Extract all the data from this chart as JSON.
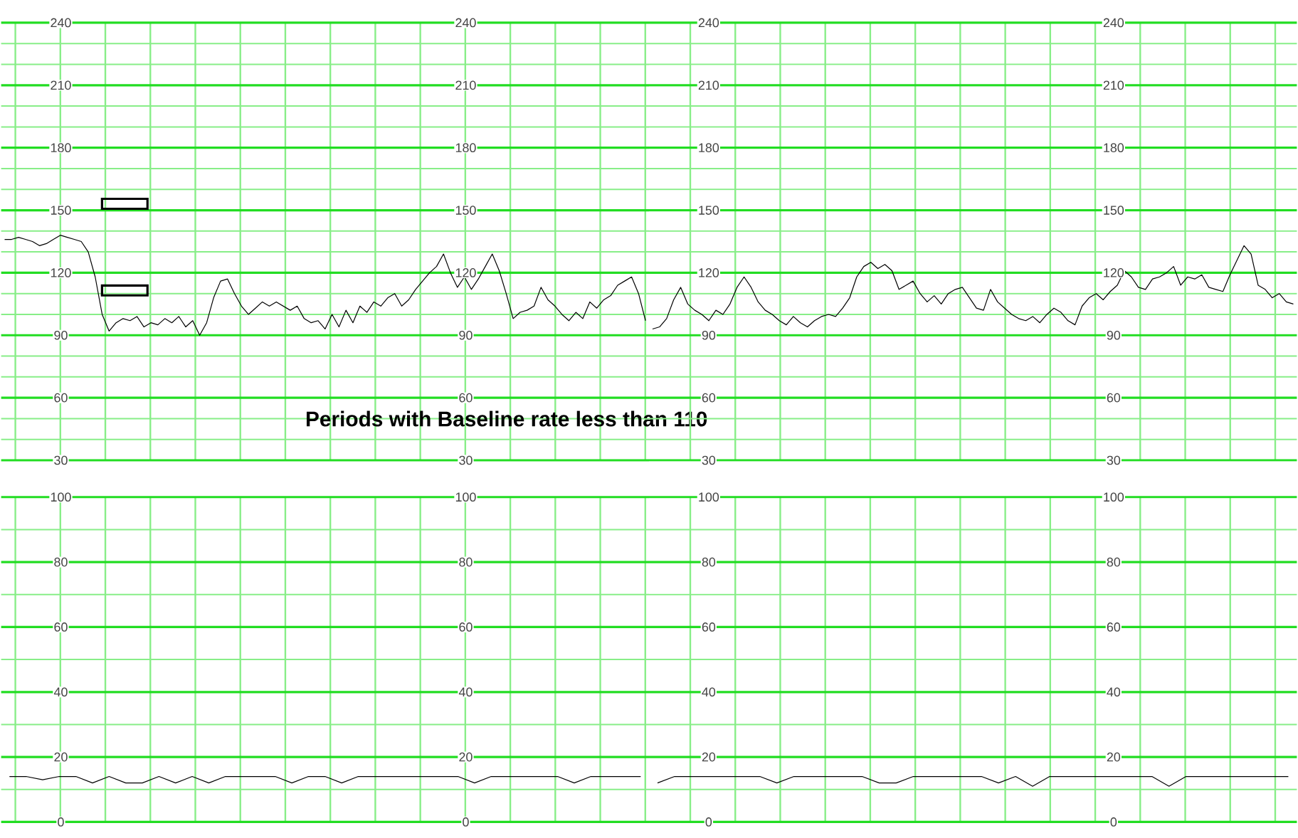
{
  "chart_data": [
    {
      "type": "line",
      "annotations": [
        "Periods with Baseline rate less than 110"
      ],
      "categories": [
        null,
        null,
        null,
        null,
        null,
        null,
        null,
        null,
        null,
        null,
        null,
        null,
        null,
        null,
        null,
        null,
        null,
        null,
        null,
        null,
        null,
        null,
        null,
        null,
        null,
        null,
        null,
        null,
        null,
        null,
        null,
        null,
        null,
        null,
        null,
        null,
        null,
        null,
        null,
        null,
        null,
        null,
        null,
        null,
        null,
        null,
        null,
        null,
        null,
        null,
        null,
        null,
        null,
        null,
        null,
        null,
        null,
        null,
        null,
        null,
        null,
        null,
        null,
        null,
        null,
        null,
        null,
        null,
        null,
        null,
        null,
        null,
        null,
        null,
        null,
        null,
        null,
        null,
        null,
        null,
        null,
        null,
        null,
        null,
        null,
        null,
        null,
        null,
        null,
        null,
        null,
        null,
        null
      ],
      "series": [
        {
          "color": "#000000",
          "values": [
            136,
            136,
            137,
            136,
            135,
            133,
            134,
            136,
            138,
            137,
            136,
            135,
            130,
            118,
            100,
            92,
            96,
            98,
            97,
            99,
            94,
            96,
            95,
            98,
            96,
            99,
            94,
            97,
            90,
            96,
            108,
            116,
            117,
            110,
            104,
            100,
            103,
            106,
            104,
            106,
            104,
            102,
            104,
            98,
            96,
            97,
            93,
            100,
            94,
            102,
            96,
            104,
            101,
            106,
            104,
            108,
            110,
            104,
            107,
            112,
            116,
            120,
            123,
            129,
            120,
            113,
            118,
            112,
            117,
            123,
            129,
            121,
            110,
            98,
            101,
            102,
            104,
            113,
            107,
            104,
            100,
            97,
            101,
            98,
            106,
            103,
            107,
            109,
            114,
            116,
            118,
            110,
            97
          ]
        }
      ],
      "ylim": [
        30,
        240
      ],
      "yticks": [
        30,
        {
          "value": 40,
          "label": null
        },
        {
          "value": 50,
          "label": null
        },
        60,
        {
          "value": 70,
          "label": null
        },
        {
          "value": 80,
          "label": null
        },
        90,
        {
          "value": 100,
          "label": null
        },
        {
          "value": 110,
          "label": null
        },
        120,
        {
          "value": 130,
          "label": null
        },
        {
          "value": 140,
          "label": null
        },
        150,
        {
          "value": 160,
          "label": null
        },
        {
          "value": 170,
          "label": null
        },
        180,
        {
          "value": 190,
          "label": null
        },
        {
          "value": 200,
          "label": null
        },
        210,
        {
          "value": 220,
          "label": null
        },
        {
          "value": 230,
          "label": null
        },
        240
      ],
      "y2lim": [
        30,
        240
      ],
      "y2ticks": [
        30,
        60,
        90,
        120,
        150,
        180,
        210,
        240
      ],
      "grid": true,
      "tick_labels": "y"
    },
    {
      "type": "line",
      "categories": [
        null,
        null,
        null,
        null,
        null,
        null,
        null,
        null,
        null,
        null,
        null,
        null,
        null,
        null,
        null,
        null,
        null,
        null,
        null,
        null,
        null,
        null,
        null,
        null,
        null,
        null,
        null,
        null,
        null,
        null,
        null,
        null,
        null,
        null,
        null,
        null,
        null,
        null,
        null,
        null,
        null,
        null,
        null,
        null,
        null,
        null,
        null,
        null,
        null,
        null,
        null,
        null,
        null,
        null,
        null,
        null,
        null,
        null,
        null,
        null,
        null,
        null,
        null,
        null,
        null,
        null,
        null,
        null,
        null,
        null,
        null,
        null,
        null,
        null,
        null,
        null,
        null,
        null,
        null,
        null,
        null,
        null,
        null,
        null,
        null,
        null,
        null,
        null,
        null,
        null,
        null,
        null
      ],
      "series": [
        {
          "color": "#000000",
          "values": [
            93,
            94,
            98,
            107,
            113,
            105,
            102,
            100,
            97,
            102,
            100,
            105,
            113,
            118,
            113,
            106,
            102,
            100,
            97,
            95,
            99,
            96,
            94,
            97,
            99,
            100,
            99,
            103,
            108,
            118,
            123,
            125,
            122,
            124,
            121,
            112,
            114,
            116,
            110,
            106,
            109,
            105,
            110,
            112,
            113,
            108,
            103,
            102,
            112,
            106,
            103,
            100,
            98,
            97,
            99,
            96,
            100,
            103,
            101,
            97,
            95,
            104,
            108,
            110,
            107,
            111,
            114,
            121,
            118,
            113,
            112,
            117,
            118,
            120,
            123,
            114,
            118,
            117,
            119,
            113,
            112,
            111,
            119,
            126,
            133,
            129,
            114,
            112,
            108,
            110,
            106,
            105
          ]
        }
      ],
      "ylim": [
        30,
        240
      ],
      "yticks": [
        30,
        {
          "value": 40,
          "label": null
        },
        {
          "value": 50,
          "label": null
        },
        60,
        {
          "value": 70,
          "label": null
        },
        {
          "value": 80,
          "label": null
        },
        90,
        {
          "value": 100,
          "label": null
        },
        {
          "value": 110,
          "label": null
        },
        120,
        {
          "value": 130,
          "label": null
        },
        {
          "value": 140,
          "label": null
        },
        150,
        {
          "value": 160,
          "label": null
        },
        {
          "value": 170,
          "label": null
        },
        180,
        {
          "value": 190,
          "label": null
        },
        {
          "value": 200,
          "label": null
        },
        210,
        {
          "value": 220,
          "label": null
        },
        {
          "value": 230,
          "label": null
        },
        240
      ],
      "y2lim": [
        30,
        240
      ],
      "y2ticks": [
        30,
        60,
        90,
        120,
        150,
        180,
        210,
        240
      ],
      "grid": true,
      "tick_labels": "y"
    },
    {
      "type": "line",
      "categories": [
        null,
        null,
        null,
        null,
        null,
        null,
        null,
        null,
        null,
        null,
        null,
        null,
        null,
        null,
        null,
        null,
        null,
        null,
        null,
        null,
        null,
        null,
        null,
        null,
        null,
        null,
        null,
        null,
        null,
        null,
        null,
        null,
        null,
        null,
        null,
        null,
        null,
        null,
        null
      ],
      "series": [
        {
          "color": "#000000",
          "values": [
            14,
            14,
            13,
            14,
            14,
            12,
            14,
            12,
            12,
            14,
            12,
            14,
            12,
            14,
            14,
            14,
            14,
            12,
            14,
            14,
            12,
            14,
            14,
            14,
            14,
            14,
            14,
            14,
            12,
            14,
            14,
            14,
            14,
            14,
            12,
            14,
            14,
            14,
            14
          ]
        }
      ],
      "ylim": [
        0,
        100
      ],
      "yticks": [
        0,
        {
          "value": 10,
          "label": null
        },
        20,
        {
          "value": 30,
          "label": null
        },
        40,
        {
          "value": 50,
          "label": null
        },
        60,
        {
          "value": 70,
          "label": null
        },
        80,
        {
          "value": 90,
          "label": null
        },
        100
      ],
      "y2lim": [
        0,
        100
      ],
      "y2ticks": [
        0,
        20,
        40,
        60,
        80,
        100
      ],
      "grid": true,
      "tick_labels": "y"
    },
    {
      "type": "line",
      "categories": [
        null,
        null,
        null,
        null,
        null,
        null,
        null,
        null,
        null,
        null,
        null,
        null,
        null,
        null,
        null,
        null,
        null,
        null,
        null,
        null,
        null,
        null,
        null,
        null,
        null,
        null,
        null,
        null,
        null,
        null,
        null,
        null,
        null,
        null,
        null,
        null,
        null,
        null
      ],
      "series": [
        {
          "color": "#000000",
          "values": [
            12,
            14,
            14,
            14,
            14,
            14,
            14,
            12,
            14,
            14,
            14,
            14,
            14,
            12,
            12,
            14,
            14,
            14,
            14,
            14,
            12,
            14,
            11,
            14,
            14,
            14,
            14,
            14,
            14,
            14,
            11,
            14,
            14,
            14,
            14,
            14,
            14,
            14
          ]
        }
      ],
      "ylim": [
        0,
        100
      ],
      "yticks": [
        0,
        {
          "value": 10,
          "label": null
        },
        20,
        {
          "value": 30,
          "label": null
        },
        40,
        {
          "value": 50,
          "label": null
        },
        60,
        {
          "value": 70,
          "label": null
        },
        80,
        {
          "value": 90,
          "label": null
        },
        100
      ],
      "y2lim": [
        0,
        100
      ],
      "y2ticks": [
        0,
        20,
        40,
        60,
        80,
        100
      ],
      "grid": true,
      "tick_labels": "y"
    }
  ]
}
